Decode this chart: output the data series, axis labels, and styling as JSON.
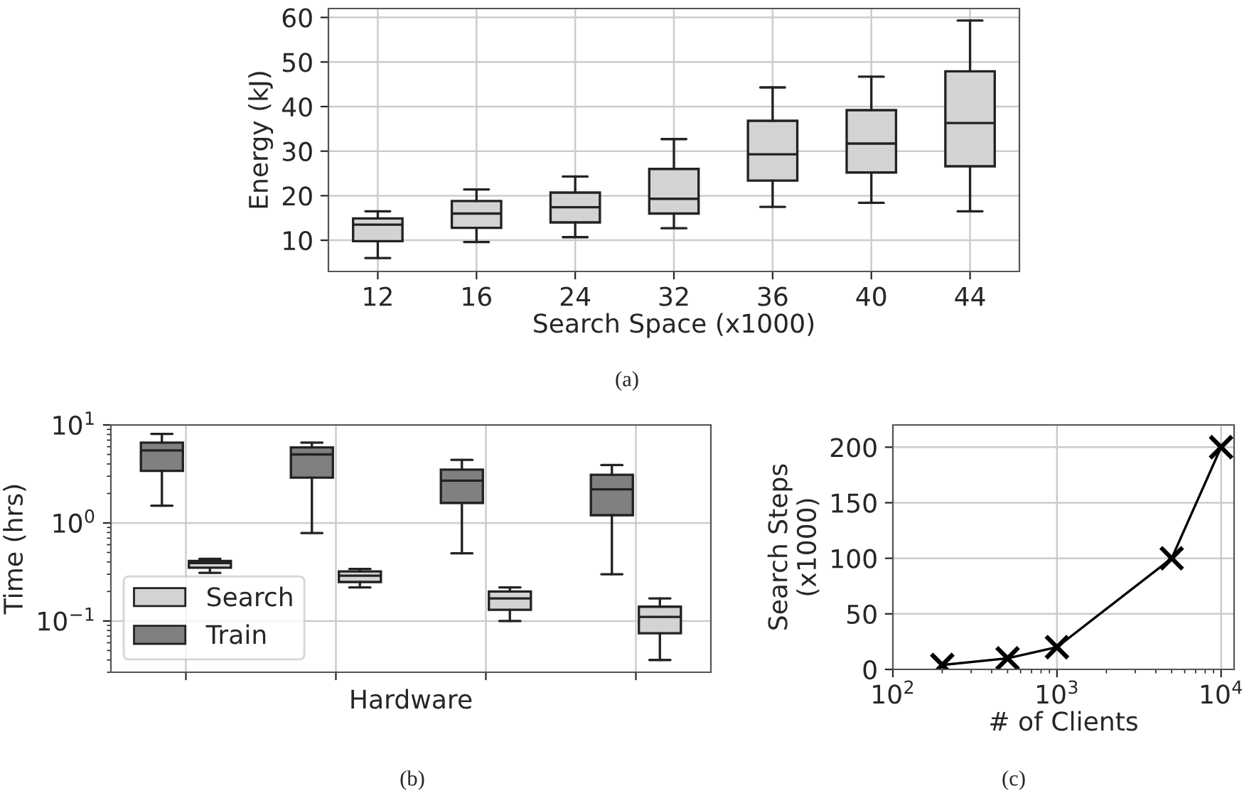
{
  "chart_data": [
    {
      "type": "box",
      "categories": [
        "12",
        "16",
        "24",
        "32",
        "36",
        "40",
        "44"
      ],
      "xlabel": "Search Space (x1000)",
      "ylabel": "Energy (kJ)",
      "ylim": [
        3,
        62
      ],
      "yticks": [
        10,
        20,
        30,
        40,
        50,
        60
      ],
      "grid": true,
      "annotations": [
        "(a)"
      ],
      "series": [
        {
          "color": "#d3d3d3",
          "boxes": [
            {
              "low": 6.0,
              "q1": 9.8,
              "median": 13.5,
              "q3": 14.9,
              "high": 16.5
            },
            {
              "low": 9.6,
              "q1": 12.8,
              "median": 16.0,
              "q3": 18.8,
              "high": 21.4
            },
            {
              "low": 10.7,
              "q1": 14.0,
              "median": 17.4,
              "q3": 20.7,
              "high": 24.3
            },
            {
              "low": 12.7,
              "q1": 16.0,
              "median": 19.3,
              "q3": 26.0,
              "high": 32.7
            },
            {
              "low": 17.5,
              "q1": 23.4,
              "median": 29.3,
              "q3": 36.8,
              "high": 44.3
            },
            {
              "low": 18.4,
              "q1": 25.2,
              "median": 31.7,
              "q3": 39.2,
              "high": 46.7
            },
            {
              "low": 16.5,
              "q1": 26.6,
              "median": 36.3,
              "q3": 47.9,
              "high": 59.3
            }
          ]
        }
      ]
    },
    {
      "type": "box",
      "categories": [
        null,
        null,
        null,
        null
      ],
      "xlabel": "Hardware",
      "ylabel": "Time (hrs)",
      "log": true,
      "ylim": [
        0.03,
        10
      ],
      "yticks": [
        {
          "value": 0.1,
          "label": "10$^{−1}$"
        },
        {
          "value": 1,
          "label": "10$^{0}$"
        },
        {
          "value": 10,
          "label": "10$^{1}$"
        }
      ],
      "grid": true,
      "legend": "bottom left",
      "annotations": [
        "(b)"
      ],
      "series": [
        {
          "name": "Search",
          "color": "#d3d3d3",
          "boxes": [
            {
              "low": 0.31,
              "q1": 0.35,
              "median": 0.39,
              "q3": 0.41,
              "high": 0.43
            },
            {
              "low": 0.22,
              "q1": 0.25,
              "median": 0.29,
              "q3": 0.32,
              "high": 0.34
            },
            {
              "low": 0.1,
              "q1": 0.13,
              "median": 0.17,
              "q3": 0.2,
              "high": 0.22
            },
            {
              "low": 0.04,
              "q1": 0.075,
              "median": 0.11,
              "q3": 0.14,
              "high": 0.17
            }
          ]
        },
        {
          "name": "Train",
          "color": "#808080",
          "boxes": [
            {
              "low": 1.5,
              "q1": 3.4,
              "median": 5.5,
              "q3": 6.6,
              "high": 8.1
            },
            {
              "low": 0.79,
              "q1": 2.9,
              "median": 5.0,
              "q3": 5.9,
              "high": 6.6
            },
            {
              "low": 0.49,
              "q1": 1.6,
              "median": 2.7,
              "q3": 3.5,
              "high": 4.4
            },
            {
              "low": 0.3,
              "q1": 1.2,
              "median": 2.2,
              "q3": 3.1,
              "high": 3.9
            }
          ]
        }
      ]
    },
    {
      "type": "line",
      "x": [
        200,
        500,
        1000,
        5000,
        10000
      ],
      "xlabel": "# of Clients",
      "ylabel": "Search Steps\n(x1000)",
      "log": "x",
      "xlim": [
        100,
        12000
      ],
      "xticks": [
        {
          "value": 100,
          "label": "10$^{2}$"
        },
        {
          "value": 1000,
          "label": "10$^{3}$"
        },
        {
          "value": 10000,
          "label": "10$^{4}$"
        }
      ],
      "ylim": [
        0,
        220
      ],
      "yticks": [
        0,
        50,
        100,
        150,
        200
      ],
      "grid": true,
      "marker": "cross",
      "line_style": "solid",
      "annotations": [
        "(c)"
      ],
      "series": [
        {
          "color": "#000000",
          "values": [
            4,
            10,
            20,
            100,
            200
          ]
        }
      ]
    }
  ]
}
